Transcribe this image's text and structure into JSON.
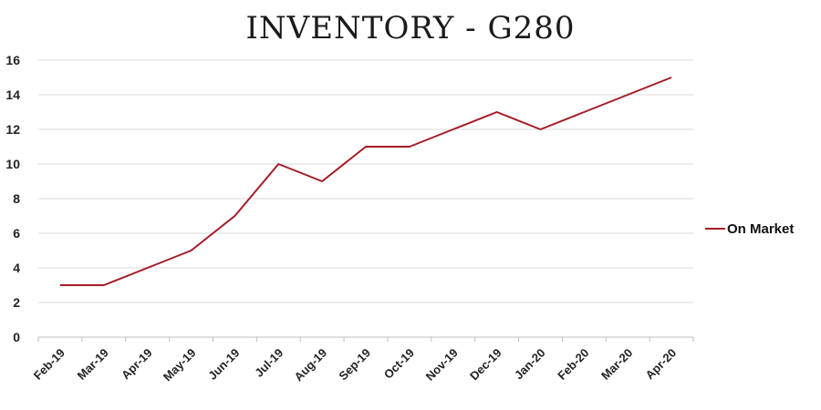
{
  "chart_data": {
    "type": "line",
    "title": "INVENTORY - G280",
    "categories": [
      "Feb-19",
      "Mar-19",
      "Apr-19",
      "May-19",
      "Jun-19",
      "Jul-19",
      "Aug-19",
      "Sep-19",
      "Oct-19",
      "Nov-19",
      "Dec-19",
      "Jan-20",
      "Feb-20",
      "Mar-20",
      "Apr-20"
    ],
    "series": [
      {
        "name": "On Market",
        "values": [
          3,
          3,
          4,
          5,
          7,
          10,
          9,
          11,
          11,
          12,
          13,
          12,
          13,
          14,
          15
        ],
        "color": "#a31c26"
      }
    ],
    "ylim": [
      0,
      16
    ],
    "yticks": [
      0,
      2,
      4,
      6,
      8,
      10,
      12,
      14,
      16
    ],
    "grid": true,
    "legend_position": "right"
  }
}
